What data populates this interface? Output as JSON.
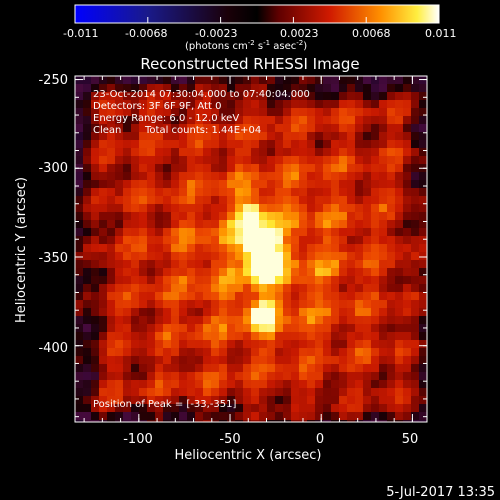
{
  "colorbar": {
    "ticks": [
      "-0.011",
      "-0.0068",
      "-0.0023",
      "0.0023",
      "0.0068",
      "0.011"
    ],
    "unit_prefix": "(photons cm",
    "unit_exp1": "-2",
    "unit_mid": " s",
    "unit_exp2": "-1",
    "unit_mid2": " asec",
    "unit_exp3": "-2",
    "unit_suffix": ")",
    "colors": [
      "#0000ff",
      "#ffffff"
    ]
  },
  "chart_data": {
    "type": "heatmap",
    "title": "Reconstructed RHESSI Image",
    "xlabel": "Heliocentric X (arcsec)",
    "ylabel": "Heliocentric Y (arcsec)",
    "xlim": [
      -135,
      58
    ],
    "ylim": [
      -443,
      -248
    ],
    "xticks": [
      "-100",
      "-50",
      "0",
      "50"
    ],
    "yticks": [
      "-250",
      "-300",
      "-350",
      "-400"
    ],
    "colormap": "hot (blue-black-red-yellow-white)",
    "peak": [
      -33,
      -351
    ],
    "bright_sources": [
      {
        "x": -36,
        "y": -340,
        "level": "peak"
      },
      {
        "x": -33,
        "y": -351,
        "level": "peak"
      },
      {
        "x": -40,
        "y": -323,
        "level": "high"
      },
      {
        "x": -36,
        "y": -380,
        "level": "high"
      }
    ],
    "annotations": {
      "time_range": "23-Oct-2014 07:30:04.000 to 07:40:04.000",
      "detectors": "Detectors: 3F 6F 9F, Att 0",
      "energy": "Energy Range: 6.0 - 12.0 keV",
      "method": "Clean",
      "counts": "Total counts: 1.44E+04",
      "peak_label": "Position of Peak = [-33,-351]"
    }
  },
  "footer": {
    "date": "5-Jul-2017 13:35"
  }
}
